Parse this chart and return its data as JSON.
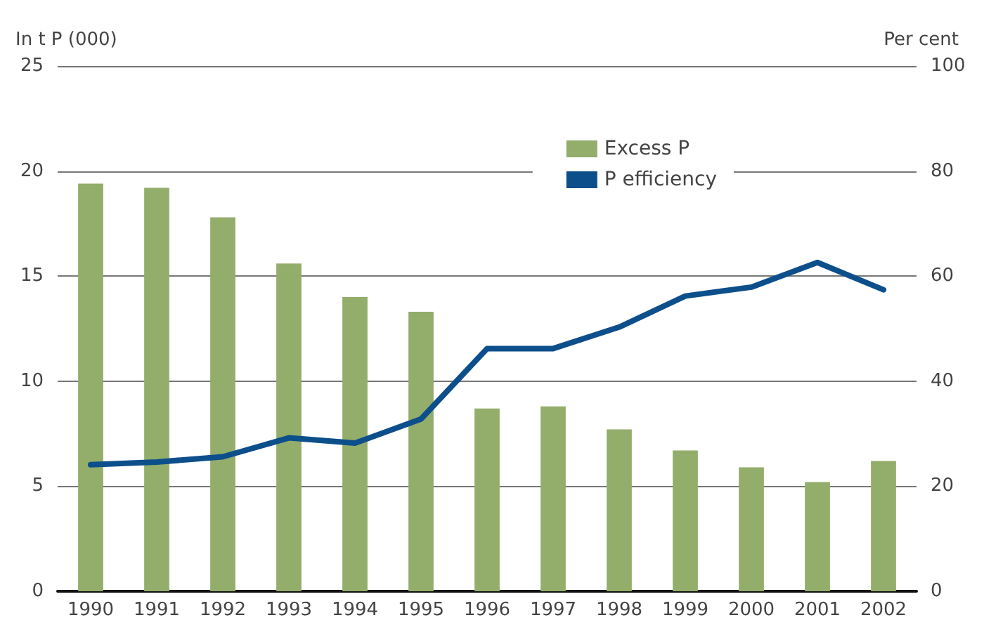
{
  "chart_data": {
    "type": "bar",
    "ylabel": "In t P (000)",
    "y2label": "Per cent",
    "categories": [
      "1990",
      "1991",
      "1992",
      "1993",
      "1994",
      "1995",
      "1996",
      "1997",
      "1998",
      "1999",
      "2000",
      "2001",
      "2002"
    ],
    "series": [
      {
        "name": "Excess P",
        "color": "#93ad6b",
        "values": [
          19.4,
          19.2,
          17.8,
          15.6,
          14.0,
          13.3,
          8.7,
          8.8,
          7.7,
          6.7,
          5.9,
          5.2,
          6.2
        ]
      },
      {
        "name": "P efficiency",
        "type": "line",
        "axis": "y2",
        "color": "#0d4f8b",
        "values": [
          24.1,
          24.6,
          25.6,
          29.2,
          28.2,
          32.8,
          46.2,
          46.2,
          50.3,
          56.2,
          57.9,
          62.6,
          57.4
        ]
      }
    ],
    "ylim": [
      0,
      25
    ],
    "yticks": [
      0,
      5,
      10,
      15,
      20,
      25
    ],
    "y2lim": [
      0,
      100
    ],
    "y2ticks": [
      0,
      20,
      40,
      60,
      80,
      100
    ],
    "grid": "y",
    "legend": "top right",
    "marker": "none",
    "line_style": "solid"
  }
}
